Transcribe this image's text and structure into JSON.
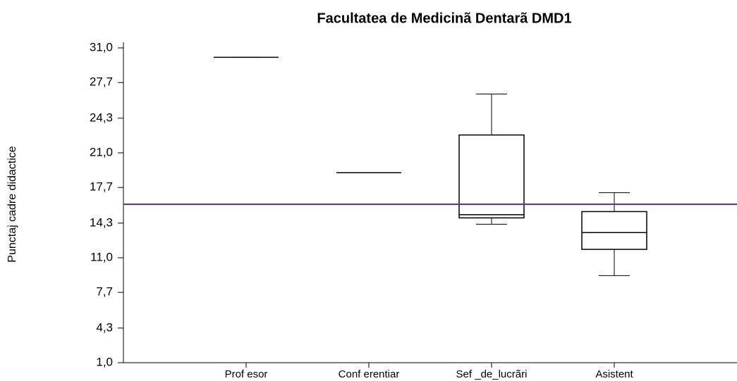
{
  "chart_data": {
    "type": "box",
    "title": "Facultatea de Medicinã  Dentarã DMD1",
    "y_label": "Punctaj cadre didactice",
    "categories": [
      "Prof esor",
      "Conf erentiar",
      "Sef _de_lucrãri",
      "Asistent"
    ],
    "min": [
      30.1,
      19.1,
      14.2,
      9.3
    ],
    "q1": [
      30.1,
      19.1,
      14.8,
      11.8
    ],
    "median": [
      30.1,
      19.1,
      15.1,
      13.4
    ],
    "q3": [
      30.1,
      19.1,
      22.7,
      15.4
    ],
    "max": [
      30.1,
      19.1,
      26.6,
      17.2
    ],
    "color": "#000000",
    "reference_line": {
      "value": 16.1,
      "color": "#6a2c91"
    },
    "ylim": [
      1,
      31
    ],
    "yticks": [
      {
        "value": 1,
        "label": "1,0"
      },
      {
        "value": 4.3,
        "label": "4,3"
      },
      {
        "value": 7.7,
        "label": "7,7"
      },
      {
        "value": 11,
        "label": "11,0"
      },
      {
        "value": 14.3,
        "label": "14,3"
      },
      {
        "value": 17.7,
        "label": "17,7"
      },
      {
        "value": 21,
        "label": "21,0"
      },
      {
        "value": 24.3,
        "label": "24,3"
      },
      {
        "value": 27.7,
        "label": "27,7"
      },
      {
        "value": 31,
        "label": "31,0"
      }
    ]
  }
}
